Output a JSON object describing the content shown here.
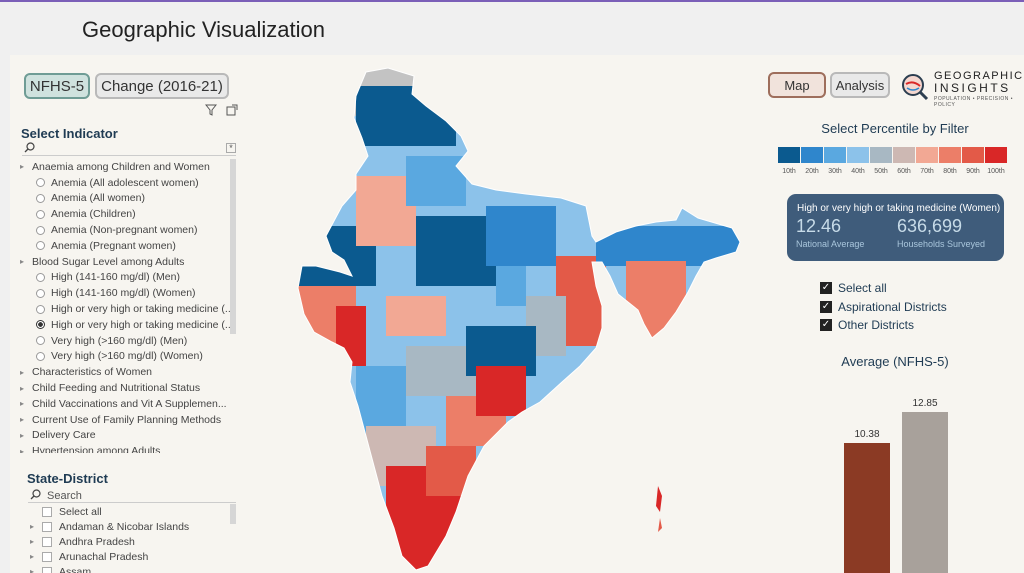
{
  "page": {
    "title": "Geographic Visualization"
  },
  "toggles": {
    "nfhs": "NFHS-5",
    "change": "Change (2016-21)",
    "map": "Map",
    "analysis": "Analysis"
  },
  "indicator": {
    "title": "Select Indicator",
    "items": [
      {
        "label": "Anaemia among Children and Women",
        "type": "group"
      },
      {
        "label": "Anemia (All adolescent women)",
        "type": "child",
        "selected": false
      },
      {
        "label": "Anemia (All women)",
        "type": "child",
        "selected": false
      },
      {
        "label": "Anemia (Children)",
        "type": "child",
        "selected": false
      },
      {
        "label": "Anemia (Non-pregnant women)",
        "type": "child",
        "selected": false
      },
      {
        "label": "Anemia (Pregnant women)",
        "type": "child",
        "selected": false
      },
      {
        "label": "Blood Sugar Level among Adults",
        "type": "group"
      },
      {
        "label": "High (141-160 mg/dl) (Men)",
        "type": "child",
        "selected": false
      },
      {
        "label": "High (141-160 mg/dl) (Women)",
        "type": "child",
        "selected": false
      },
      {
        "label": "High or very high or taking medicine (...",
        "type": "child",
        "selected": false
      },
      {
        "label": "High or very high or taking medicine (...",
        "type": "child",
        "selected": true
      },
      {
        "label": "Very high (>160 mg/dl) (Men)",
        "type": "child",
        "selected": false
      },
      {
        "label": "Very high (>160 mg/dl) (Women)",
        "type": "child",
        "selected": false
      },
      {
        "label": "Characteristics of Women",
        "type": "group"
      },
      {
        "label": "Child Feeding and Nutritional Status",
        "type": "group"
      },
      {
        "label": "Child Vaccinations and Vit A Supplemen...",
        "type": "group"
      },
      {
        "label": "Current Use of Family Planning Methods",
        "type": "group"
      },
      {
        "label": "Delivery Care",
        "type": "group"
      },
      {
        "label": "Hypertension among Adults",
        "type": "group"
      }
    ]
  },
  "state_district": {
    "title": "State-District",
    "search_placeholder": "Search",
    "items": [
      {
        "label": "Select all",
        "expand": false
      },
      {
        "label": "Andaman & Nicobar Islands",
        "expand": true
      },
      {
        "label": "Andhra Pradesh",
        "expand": true
      },
      {
        "label": "Arunachal Pradesh",
        "expand": true
      },
      {
        "label": "Assam",
        "expand": true
      }
    ]
  },
  "logo": {
    "line1": "GEOGRAPHIC",
    "line2": "INSIGHTS",
    "line3": "POPULATION • PRECISION • POLICY"
  },
  "percentile": {
    "title": "Select Percentile by Filter",
    "labels": [
      "10th",
      "20th",
      "30th",
      "40th",
      "50th",
      "60th",
      "70th",
      "80th",
      "90th",
      "100th"
    ],
    "colors": [
      "#0b5a8f",
      "#2f86cc",
      "#5aa8e0",
      "#8cc2ea",
      "#a8b8c3",
      "#cdb8b3",
      "#f2a894",
      "#ec7e68",
      "#e35a48",
      "#d92727"
    ]
  },
  "card": {
    "title": "High or very high or taking medicine (Women)",
    "value1": "12.46",
    "label1": "National Average",
    "value2": "636,699",
    "label2": "Households Surveyed"
  },
  "filters": [
    {
      "label": "Select all",
      "checked": true
    },
    {
      "label": "Aspirational Districts",
      "checked": true
    },
    {
      "label": "Other Districts",
      "checked": true
    }
  ],
  "chart_data": {
    "type": "bar",
    "title": "Average (NFHS-5)",
    "categories": [
      "",
      ""
    ],
    "values": [
      10.38,
      12.85
    ],
    "value_labels": [
      "10.38",
      "12.85"
    ],
    "colors": [
      "#8b3a24",
      "#a8a19b"
    ],
    "ylim": [
      0,
      14
    ]
  }
}
